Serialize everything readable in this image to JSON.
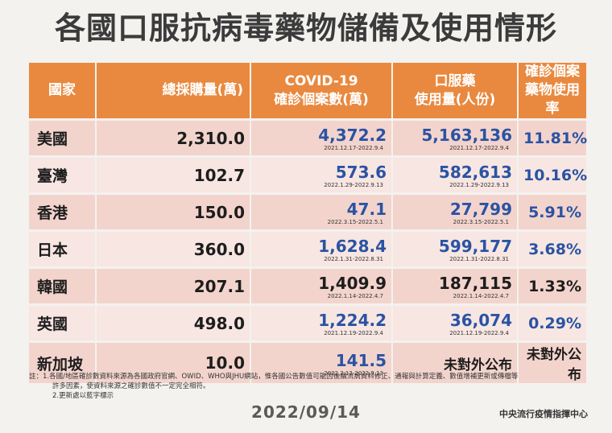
{
  "title": "各國口服抗病毒藥物儲備及使用情形",
  "headers": [
    "國家",
    "總採購量(萬)",
    "COVID-19\n確診個案數(萬)",
    "口服藥\n使用量(人份)",
    "確診個案\n藥物使用率"
  ],
  "rows": [
    {
      "country": "美國",
      "purchase": "2,310.0",
      "cases": "4,372.2",
      "cases_date": "2021.12.17-2022.9.4",
      "cases_blue": true,
      "usage": "5,163,136",
      "usage_date": "2021.12.17-2022.9.4",
      "usage_blue": true,
      "rate": "11.81%",
      "rate_blue": true
    },
    {
      "country": "臺灣",
      "purchase": "102.7",
      "cases": "573.6",
      "cases_date": "2022.1.29-2022.9.13",
      "cases_blue": true,
      "usage": "582,613",
      "usage_date": "2022.1.29-2022.9.13",
      "usage_blue": true,
      "rate": "10.16%",
      "rate_blue": true
    },
    {
      "country": "香港",
      "purchase": "150.0",
      "cases": "47.1",
      "cases_date": "2022.3.15-2022.5.1",
      "cases_blue": true,
      "usage": "27,799",
      "usage_date": "2022.3.15-2022.5.1",
      "usage_blue": true,
      "rate": "5.91%",
      "rate_blue": true
    },
    {
      "country": "日本",
      "purchase": "360.0",
      "cases": "1,628.4",
      "cases_date": "2022.1.31-2022.8.31",
      "cases_blue": true,
      "usage": "599,177",
      "usage_date": "2022.1.31-2022.8.31",
      "usage_blue": true,
      "rate": "3.68%",
      "rate_blue": true
    },
    {
      "country": "韓國",
      "purchase": "207.1",
      "cases": "1,409.9",
      "cases_date": "2022.1.14-2022.4.7",
      "cases_blue": false,
      "usage": "187,115",
      "usage_date": "2022.1.14-2022.4.7",
      "usage_blue": false,
      "rate": "1.33%",
      "rate_blue": false
    },
    {
      "country": "英國",
      "purchase": "498.0",
      "cases": "1,224.2",
      "cases_date": "2021.12.19-2022.9.4",
      "cases_blue": true,
      "usage": "36,074",
      "usage_date": "2021.12.19-2022.9.4",
      "usage_blue": true,
      "rate": "0.29%",
      "rate_blue": true
    },
    {
      "country": "新加坡",
      "purchase": "10.0",
      "cases": "141.5",
      "cases_date": "2022.2.12-2022.9.13",
      "cases_blue": true,
      "usage": "未對外公布",
      "usage_date": "",
      "usage_blue": false,
      "rate": "未對外公布",
      "rate_blue": false
    }
  ],
  "notes": {
    "line1": "註：1.各國/地區確診數資料來源為各國政府官網、OWID、WHO與JHU網站，惟各國公告數值可能因後續流病資料修正、通報與計算定義、數值增補更新或傳檔等",
    "line2": "許多因素，使資料來源之確診數值不一定完全相符。",
    "line3": "2.更新處以藍字標示"
  },
  "footer_date": "2022/09/14",
  "source": "中央流行疫情指揮中心",
  "colors": {
    "header": "#e9893f",
    "row_odd": "#f3d4cd",
    "row_even": "#f7e6e2",
    "blue_text": "#2a53a3"
  }
}
